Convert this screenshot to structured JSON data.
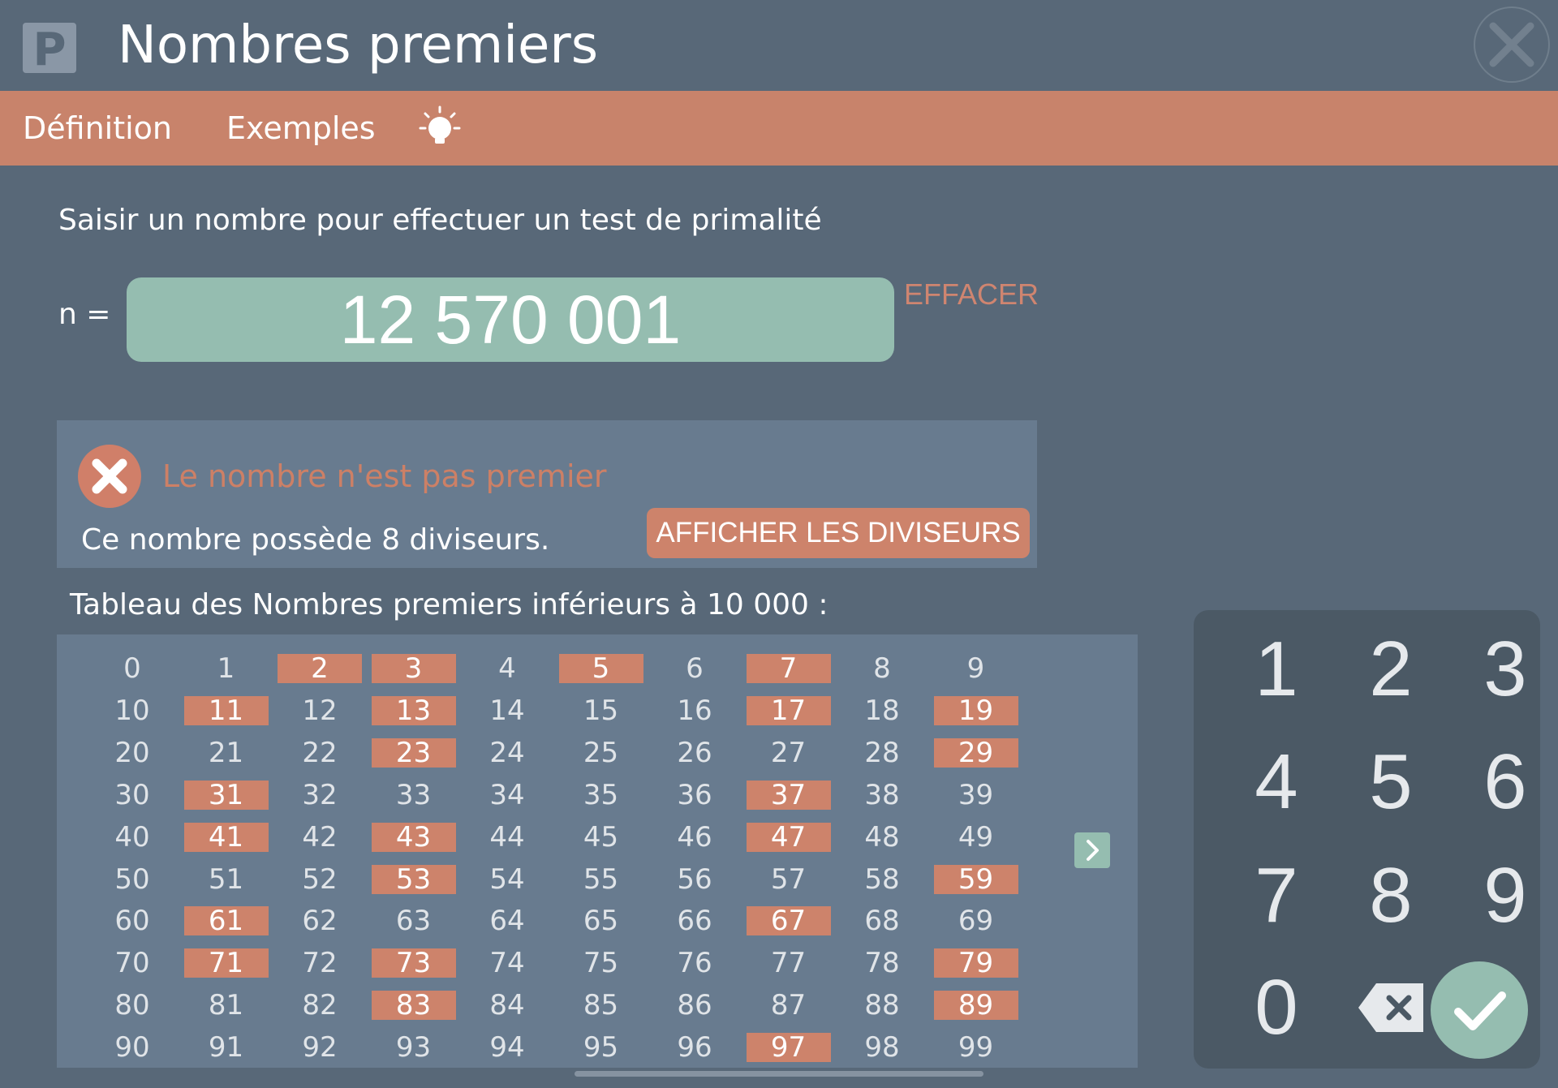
{
  "app": {
    "logo_letter": "P",
    "title": "Nombres premiers",
    "close_icon": "close-icon"
  },
  "menu": {
    "items": [
      {
        "label": "Définition"
      },
      {
        "label": "Exemples"
      }
    ],
    "hint_icon": "lightbulb-icon"
  },
  "input": {
    "prompt": "Saisir un nombre pour effectuer un test de primalité",
    "label": "n =",
    "value": "12 570 001",
    "clear_label": "EFFACER"
  },
  "result": {
    "icon": "error-x-icon",
    "title": "Le nombre n'est pas premier",
    "description": "Ce nombre possède 8 diviseurs.",
    "button_label": "AFFICHER LES DIVISEURS"
  },
  "prime_table": {
    "caption": "Tableau des Nombres premiers  inférieurs à 10 000 :",
    "columns": 10,
    "numbers": [
      0,
      1,
      2,
      3,
      4,
      5,
      6,
      7,
      8,
      9,
      10,
      11,
      12,
      13,
      14,
      15,
      16,
      17,
      18,
      19,
      20,
      21,
      22,
      23,
      24,
      25,
      26,
      27,
      28,
      29,
      30,
      31,
      32,
      33,
      34,
      35,
      36,
      37,
      38,
      39,
      40,
      41,
      42,
      43,
      44,
      45,
      46,
      47,
      48,
      49,
      50,
      51,
      52,
      53,
      54,
      55,
      56,
      57,
      58,
      59,
      60,
      61,
      62,
      63,
      64,
      65,
      66,
      67,
      68,
      69,
      70,
      71,
      72,
      73,
      74,
      75,
      76,
      77,
      78,
      79,
      80,
      81,
      82,
      83,
      84,
      85,
      86,
      87,
      88,
      89,
      90,
      91,
      92,
      93,
      94,
      95,
      96,
      97,
      98,
      99
    ],
    "primes": [
      2,
      3,
      5,
      7,
      11,
      13,
      17,
      19,
      23,
      29,
      31,
      37,
      41,
      43,
      47,
      53,
      59,
      61,
      67,
      71,
      73,
      79,
      83,
      89,
      97
    ],
    "next_icon": "chevron-right-icon"
  },
  "keypad": {
    "keys": [
      "1",
      "2",
      "3",
      "4",
      "5",
      "6",
      "7",
      "8",
      "9",
      "0"
    ],
    "backspace_icon": "backspace-icon",
    "confirm_icon": "checkmark-icon"
  },
  "colors": {
    "background": "#586878",
    "accent": "#c8836b",
    "input_bg": "#95bdb0",
    "panel": "#687b8f",
    "keypad": "#4b5965"
  }
}
